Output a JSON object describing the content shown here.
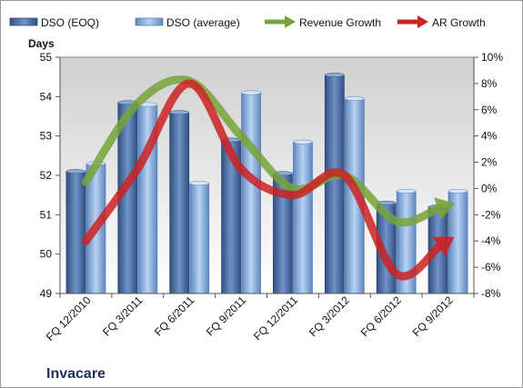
{
  "chart_data": {
    "type": "bar",
    "title": "",
    "company_label": "Invacare",
    "categories": [
      "FQ 12/2010",
      "FQ 3/2011",
      "FQ 6/2011",
      "FQ 9/2011",
      "FQ 12/2011",
      "FQ 3/2012",
      "FQ 6/2012",
      "FQ 9/2012"
    ],
    "ylabel": "Days",
    "ylim": [
      49,
      55
    ],
    "y_ticks": [
      "55",
      "54",
      "53",
      "52",
      "51",
      "50",
      "49"
    ],
    "y2lim": [
      -8,
      10
    ],
    "y2_ticks": [
      "10%",
      "8%",
      "6%",
      "4%",
      "2%",
      "0%",
      "-2%",
      "-4%",
      "-6%",
      "-8%"
    ],
    "grid": false,
    "legend_position": "top",
    "series": [
      {
        "name": "DSO (EOQ)",
        "kind": "bar",
        "axis": "left",
        "color": "#4a6ea3",
        "values": [
          52.1,
          53.85,
          53.6,
          52.9,
          52.05,
          54.55,
          51.3,
          51.2
        ]
      },
      {
        "name": "DSO (average)",
        "kind": "bar",
        "axis": "left",
        "color": "#8db3e2",
        "values": [
          52.3,
          53.8,
          51.8,
          54.1,
          52.85,
          53.95,
          51.6,
          51.6
        ]
      },
      {
        "name": "Revenue Growth",
        "kind": "line-arrow",
        "axis": "right",
        "color": "#77a33a",
        "values": [
          0.5,
          6.5,
          8.2,
          4.0,
          0.0,
          1.0,
          -2.5,
          -1.3
        ]
      },
      {
        "name": "AR Growth",
        "kind": "line-arrow",
        "axis": "right",
        "color": "#cc2222",
        "values": [
          -4.0,
          1.5,
          8.0,
          1.5,
          -0.5,
          1.0,
          -6.5,
          -4.0
        ]
      }
    ]
  }
}
